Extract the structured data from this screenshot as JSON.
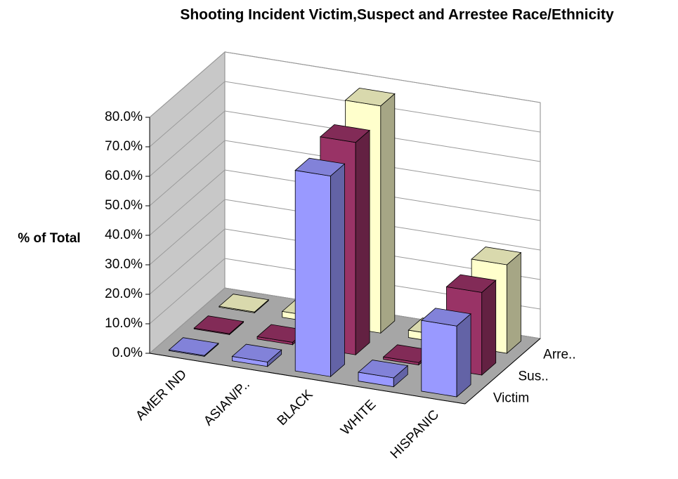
{
  "chart_data": {
    "type": "bar3d",
    "title": "Shooting Incident Victim,Suspect and Arrestee Race/Ethnicity",
    "y_label": "% of Total",
    "categories": [
      "AMER IND",
      "ASIAN/P..",
      "BLACK",
      "WHITE",
      "HISPANIC"
    ],
    "series": [
      {
        "name": "Victim",
        "color": "#9999ff",
        "values": [
          0.3,
          1.5,
          68,
          3,
          24
        ]
      },
      {
        "name": "Sus..",
        "color": "#993366",
        "values": [
          0.3,
          0.8,
          72,
          0.8,
          28
        ]
      },
      {
        "name": "Arre..",
        "color": "#ffffcc",
        "values": [
          0.3,
          2,
          77,
          2.5,
          30
        ]
      }
    ],
    "ylim": [
      0,
      80
    ],
    "yticks": [
      {
        "value": 0,
        "label": "0.0%"
      },
      {
        "value": 10,
        "label": "10.0%"
      },
      {
        "value": 20,
        "label": "20.0%"
      },
      {
        "value": 30,
        "label": "30.0%"
      },
      {
        "value": 40,
        "label": "40.0%"
      },
      {
        "value": 50,
        "label": "50.0%"
      },
      {
        "value": 60,
        "label": "60.0%"
      },
      {
        "value": 70,
        "label": "70.0%"
      },
      {
        "value": 80,
        "label": "80.0%"
      }
    ],
    "grid": true
  }
}
